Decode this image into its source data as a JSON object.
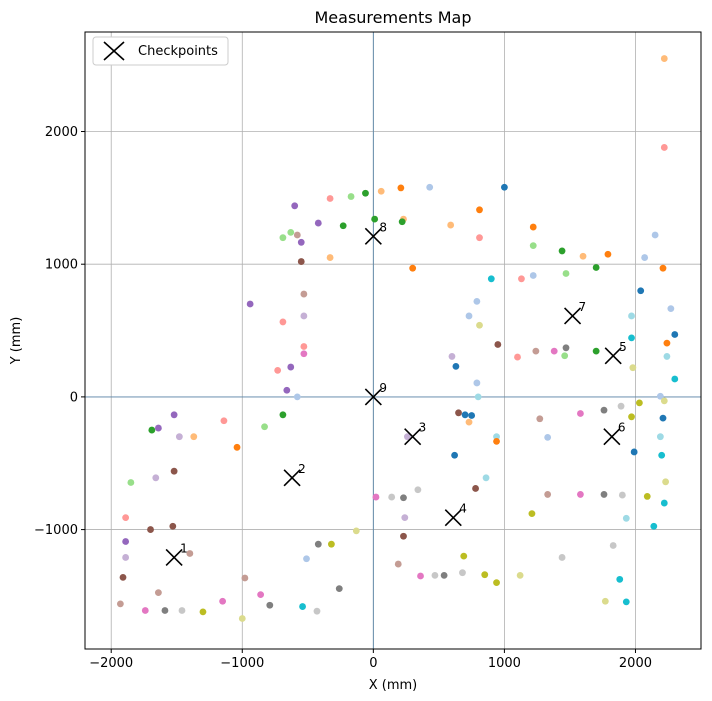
{
  "chart_data": {
    "type": "scatter",
    "title": "Measurements Map",
    "xlabel": "X (mm)",
    "ylabel": "Y (mm)",
    "xlim": [
      -2200,
      2500
    ],
    "ylim": [
      -1900,
      2750
    ],
    "xticks": [
      -2000,
      -1000,
      0,
      1000,
      2000
    ],
    "yticks": [
      -1000,
      0,
      1000,
      2000
    ],
    "xtick_labels": [
      "−2000",
      "−1000",
      "0",
      "1000",
      "2000"
    ],
    "ytick_labels": [
      "−1000",
      "0",
      "1000",
      "2000"
    ],
    "grid": true,
    "reference_lines": {
      "x": 0,
      "y": 0
    },
    "legend": {
      "position": "top-left",
      "entries": [
        "Checkpoints"
      ]
    },
    "checkpoints": {
      "name": "Checkpoints",
      "marker": "x",
      "color": "#000000",
      "points": [
        {
          "label": "1",
          "x": -1520,
          "y": -1210
        },
        {
          "label": "2",
          "x": -620,
          "y": -610
        },
        {
          "label": "3",
          "x": 300,
          "y": -300
        },
        {
          "label": "4",
          "x": 610,
          "y": -910
        },
        {
          "label": "5",
          "x": 1830,
          "y": 310
        },
        {
          "label": "6",
          "x": 1820,
          "y": -300
        },
        {
          "label": "7",
          "x": 1520,
          "y": 610
        },
        {
          "label": "8",
          "x": 0,
          "y": 1210
        },
        {
          "label": "9",
          "x": 0,
          "y": 0
        }
      ]
    },
    "measurements": [
      {
        "x": 2220,
        "y": 2550,
        "color": "#ffbb78"
      },
      {
        "x": 2220,
        "y": 1880,
        "color": "#ff9896"
      },
      {
        "x": 1000,
        "y": 1580,
        "color": "#1f77b4"
      },
      {
        "x": 430,
        "y": 1580,
        "color": "#aec7e8"
      },
      {
        "x": 210,
        "y": 1575,
        "color": "#ff7f0e"
      },
      {
        "x": 60,
        "y": 1550,
        "color": "#ffbb78"
      },
      {
        "x": -60,
        "y": 1535,
        "color": "#2ca02c"
      },
      {
        "x": -170,
        "y": 1510,
        "color": "#98df8a"
      },
      {
        "x": -330,
        "y": 1495,
        "color": "#ff9896"
      },
      {
        "x": -600,
        "y": 1440,
        "color": "#9467bd"
      },
      {
        "x": 810,
        "y": 1410,
        "color": "#ff7f0e"
      },
      {
        "x": 590,
        "y": 1295,
        "color": "#ffbb78"
      },
      {
        "x": 230,
        "y": 1340,
        "color": "#ffbb78"
      },
      {
        "x": 10,
        "y": 1340,
        "color": "#2ca02c"
      },
      {
        "x": -230,
        "y": 1290,
        "color": "#2ca02c"
      },
      {
        "x": -420,
        "y": 1310,
        "color": "#9467bd"
      },
      {
        "x": 220,
        "y": 1320,
        "color": "#2ca02c"
      },
      {
        "x": -630,
        "y": 1240,
        "color": "#98df8a"
      },
      {
        "x": -580,
        "y": 1220,
        "color": "#c49c94"
      },
      {
        "x": -690,
        "y": 1200,
        "color": "#98df8a"
      },
      {
        "x": -550,
        "y": 1165,
        "color": "#9467bd"
      },
      {
        "x": 810,
        "y": 1200,
        "color": "#ff9896"
      },
      {
        "x": 1220,
        "y": 1280,
        "color": "#ff7f0e"
      },
      {
        "x": 1220,
        "y": 1140,
        "color": "#98df8a"
      },
      {
        "x": 1440,
        "y": 1100,
        "color": "#2ca02c"
      },
      {
        "x": 1600,
        "y": 1060,
        "color": "#ffbb78"
      },
      {
        "x": 1790,
        "y": 1075,
        "color": "#ff7f0e"
      },
      {
        "x": 2150,
        "y": 1220,
        "color": "#aec7e8"
      },
      {
        "x": 2070,
        "y": 1050,
        "color": "#aec7e8"
      },
      {
        "x": -330,
        "y": 1050,
        "color": "#ffbb78"
      },
      {
        "x": -550,
        "y": 1020,
        "color": "#8c564b"
      },
      {
        "x": 300,
        "y": 970,
        "color": "#ff7f0e"
      },
      {
        "x": 1700,
        "y": 975,
        "color": "#2ca02c"
      },
      {
        "x": 2210,
        "y": 970,
        "color": "#ff7f0e"
      },
      {
        "x": 1470,
        "y": 930,
        "color": "#98df8a"
      },
      {
        "x": 1220,
        "y": 915,
        "color": "#aec7e8"
      },
      {
        "x": 1130,
        "y": 890,
        "color": "#ff9896"
      },
      {
        "x": 900,
        "y": 890,
        "color": "#17becf"
      },
      {
        "x": 2040,
        "y": 800,
        "color": "#1f77b4"
      },
      {
        "x": -530,
        "y": 775,
        "color": "#c49c94"
      },
      {
        "x": 790,
        "y": 720,
        "color": "#aec7e8"
      },
      {
        "x": -940,
        "y": 700,
        "color": "#9467bd"
      },
      {
        "x": 2270,
        "y": 665,
        "color": "#aec7e8"
      },
      {
        "x": 730,
        "y": 610,
        "color": "#aec7e8"
      },
      {
        "x": 1970,
        "y": 610,
        "color": "#9edae5"
      },
      {
        "x": -530,
        "y": 610,
        "color": "#c5b0d5"
      },
      {
        "x": -690,
        "y": 565,
        "color": "#ff9896"
      },
      {
        "x": 810,
        "y": 540,
        "color": "#dbdb8d"
      },
      {
        "x": 2300,
        "y": 470,
        "color": "#1f77b4"
      },
      {
        "x": 1970,
        "y": 445,
        "color": "#17becf"
      },
      {
        "x": 2240,
        "y": 405,
        "color": "#ff7f0e"
      },
      {
        "x": 950,
        "y": 395,
        "color": "#8c564b"
      },
      {
        "x": -530,
        "y": 380,
        "color": "#ff9896"
      },
      {
        "x": 1470,
        "y": 370,
        "color": "#7f7f7f"
      },
      {
        "x": 1380,
        "y": 345,
        "color": "#e377c2"
      },
      {
        "x": 1240,
        "y": 345,
        "color": "#c49c94"
      },
      {
        "x": 1700,
        "y": 345,
        "color": "#2ca02c"
      },
      {
        "x": -530,
        "y": 325,
        "color": "#e377c2"
      },
      {
        "x": 2240,
        "y": 305,
        "color": "#9edae5"
      },
      {
        "x": 1100,
        "y": 300,
        "color": "#ff9896"
      },
      {
        "x": 1460,
        "y": 310,
        "color": "#98df8a"
      },
      {
        "x": 600,
        "y": 305,
        "color": "#c5b0d5"
      },
      {
        "x": 630,
        "y": 230,
        "color": "#1f77b4"
      },
      {
        "x": -630,
        "y": 225,
        "color": "#9467bd"
      },
      {
        "x": 1980,
        "y": 220,
        "color": "#dbdb8d"
      },
      {
        "x": -730,
        "y": 200,
        "color": "#ff9896"
      },
      {
        "x": 2300,
        "y": 135,
        "color": "#17becf"
      },
      {
        "x": 790,
        "y": 105,
        "color": "#aec7e8"
      },
      {
        "x": -660,
        "y": 50,
        "color": "#9467bd"
      },
      {
        "x": -580,
        "y": 0,
        "color": "#aec7e8"
      },
      {
        "x": 800,
        "y": 0,
        "color": "#9edae5"
      },
      {
        "x": 2190,
        "y": 5,
        "color": "#aec7e8"
      },
      {
        "x": 2030,
        "y": -45,
        "color": "#bcbd22"
      },
      {
        "x": 2220,
        "y": -30,
        "color": "#dbdb8d"
      },
      {
        "x": 1890,
        "y": -70,
        "color": "#c7c7c7"
      },
      {
        "x": 1760,
        "y": -100,
        "color": "#7f7f7f"
      },
      {
        "x": 1580,
        "y": -125,
        "color": "#e377c2"
      },
      {
        "x": 650,
        "y": -120,
        "color": "#8c564b"
      },
      {
        "x": 700,
        "y": -135,
        "color": "#1f77b4"
      },
      {
        "x": 750,
        "y": -140,
        "color": "#1f77b4"
      },
      {
        "x": 1970,
        "y": -150,
        "color": "#bcbd22"
      },
      {
        "x": 2210,
        "y": -160,
        "color": "#1f77b4"
      },
      {
        "x": 1270,
        "y": -165,
        "color": "#c49c94"
      },
      {
        "x": 730,
        "y": -190,
        "color": "#ffbb78"
      },
      {
        "x": -690,
        "y": -135,
        "color": "#2ca02c"
      },
      {
        "x": -1520,
        "y": -135,
        "color": "#9467bd"
      },
      {
        "x": -1140,
        "y": -180,
        "color": "#ff9896"
      },
      {
        "x": -830,
        "y": -225,
        "color": "#98df8a"
      },
      {
        "x": -1640,
        "y": -235,
        "color": "#9467bd"
      },
      {
        "x": -1690,
        "y": -250,
        "color": "#2ca02c"
      },
      {
        "x": -1480,
        "y": -300,
        "color": "#c5b0d5"
      },
      {
        "x": -1370,
        "y": -300,
        "color": "#ffbb78"
      },
      {
        "x": 940,
        "y": -300,
        "color": "#9edae5"
      },
      {
        "x": 1330,
        "y": -305,
        "color": "#aec7e8"
      },
      {
        "x": 2190,
        "y": -300,
        "color": "#9edae5"
      },
      {
        "x": 260,
        "y": -300,
        "color": "#c5b0d5"
      },
      {
        "x": 940,
        "y": -335,
        "color": "#ff7f0e"
      },
      {
        "x": -1040,
        "y": -380,
        "color": "#ff7f0e"
      },
      {
        "x": 1990,
        "y": -415,
        "color": "#1f77b4"
      },
      {
        "x": 620,
        "y": -440,
        "color": "#1f77b4"
      },
      {
        "x": 2200,
        "y": -440,
        "color": "#17becf"
      },
      {
        "x": -1520,
        "y": -560,
        "color": "#8c564b"
      },
      {
        "x": -1660,
        "y": -610,
        "color": "#c5b0d5"
      },
      {
        "x": 860,
        "y": -610,
        "color": "#9edae5"
      },
      {
        "x": -1850,
        "y": -645,
        "color": "#98df8a"
      },
      {
        "x": 2230,
        "y": -640,
        "color": "#dbdb8d"
      },
      {
        "x": 780,
        "y": -690,
        "color": "#8c564b"
      },
      {
        "x": 340,
        "y": -700,
        "color": "#c7c7c7"
      },
      {
        "x": 1330,
        "y": -735,
        "color": "#c49c94"
      },
      {
        "x": 1580,
        "y": -735,
        "color": "#e377c2"
      },
      {
        "x": 1760,
        "y": -735,
        "color": "#7f7f7f"
      },
      {
        "x": 1900,
        "y": -740,
        "color": "#c7c7c7"
      },
      {
        "x": 2090,
        "y": -750,
        "color": "#bcbd22"
      },
      {
        "x": 20,
        "y": -755,
        "color": "#e377c2"
      },
      {
        "x": 140,
        "y": -755,
        "color": "#c7c7c7"
      },
      {
        "x": 230,
        "y": -760,
        "color": "#7f7f7f"
      },
      {
        "x": 2220,
        "y": -800,
        "color": "#17becf"
      },
      {
        "x": 1210,
        "y": -880,
        "color": "#bcbd22"
      },
      {
        "x": -1890,
        "y": -910,
        "color": "#ff9896"
      },
      {
        "x": 240,
        "y": -910,
        "color": "#c5b0d5"
      },
      {
        "x": 1930,
        "y": -915,
        "color": "#9edae5"
      },
      {
        "x": 2140,
        "y": -975,
        "color": "#17becf"
      },
      {
        "x": -1530,
        "y": -975,
        "color": "#8c564b"
      },
      {
        "x": -1700,
        "y": -1000,
        "color": "#8c564b"
      },
      {
        "x": -130,
        "y": -1010,
        "color": "#dbdb8d"
      },
      {
        "x": 230,
        "y": -1050,
        "color": "#8c564b"
      },
      {
        "x": -1890,
        "y": -1090,
        "color": "#9467bd"
      },
      {
        "x": -420,
        "y": -1110,
        "color": "#7f7f7f"
      },
      {
        "x": -320,
        "y": -1110,
        "color": "#bcbd22"
      },
      {
        "x": 1830,
        "y": -1120,
        "color": "#c7c7c7"
      },
      {
        "x": -1400,
        "y": -1180,
        "color": "#c49c94"
      },
      {
        "x": 690,
        "y": -1200,
        "color": "#bcbd22"
      },
      {
        "x": 1440,
        "y": -1210,
        "color": "#c7c7c7"
      },
      {
        "x": -1890,
        "y": -1210,
        "color": "#c5b0d5"
      },
      {
        "x": -510,
        "y": -1220,
        "color": "#aec7e8"
      },
      {
        "x": 190,
        "y": -1260,
        "color": "#c49c94"
      },
      {
        "x": -1910,
        "y": -1360,
        "color": "#8c564b"
      },
      {
        "x": -980,
        "y": -1365,
        "color": "#c49c94"
      },
      {
        "x": 470,
        "y": -1345,
        "color": "#c7c7c7"
      },
      {
        "x": 540,
        "y": -1345,
        "color": "#7f7f7f"
      },
      {
        "x": 360,
        "y": -1350,
        "color": "#e377c2"
      },
      {
        "x": 680,
        "y": -1325,
        "color": "#c7c7c7"
      },
      {
        "x": 850,
        "y": -1340,
        "color": "#bcbd22"
      },
      {
        "x": 1120,
        "y": -1345,
        "color": "#dbdb8d"
      },
      {
        "x": 1880,
        "y": -1375,
        "color": "#17becf"
      },
      {
        "x": 940,
        "y": -1400,
        "color": "#bcbd22"
      },
      {
        "x": -260,
        "y": -1445,
        "color": "#7f7f7f"
      },
      {
        "x": -1640,
        "y": -1475,
        "color": "#c49c94"
      },
      {
        "x": -860,
        "y": -1490,
        "color": "#e377c2"
      },
      {
        "x": -1930,
        "y": -1560,
        "color": "#c49c94"
      },
      {
        "x": -790,
        "y": -1570,
        "color": "#7f7f7f"
      },
      {
        "x": -1150,
        "y": -1540,
        "color": "#e377c2"
      },
      {
        "x": 1770,
        "y": -1540,
        "color": "#dbdb8d"
      },
      {
        "x": 1930,
        "y": -1545,
        "color": "#17becf"
      },
      {
        "x": -540,
        "y": -1580,
        "color": "#17becf"
      },
      {
        "x": -1740,
        "y": -1610,
        "color": "#e377c2"
      },
      {
        "x": -1590,
        "y": -1610,
        "color": "#7f7f7f"
      },
      {
        "x": -1460,
        "y": -1610,
        "color": "#c7c7c7"
      },
      {
        "x": -1300,
        "y": -1620,
        "color": "#bcbd22"
      },
      {
        "x": -430,
        "y": -1615,
        "color": "#c7c7c7"
      },
      {
        "x": -1000,
        "y": -1670,
        "color": "#dbdb8d"
      }
    ]
  }
}
